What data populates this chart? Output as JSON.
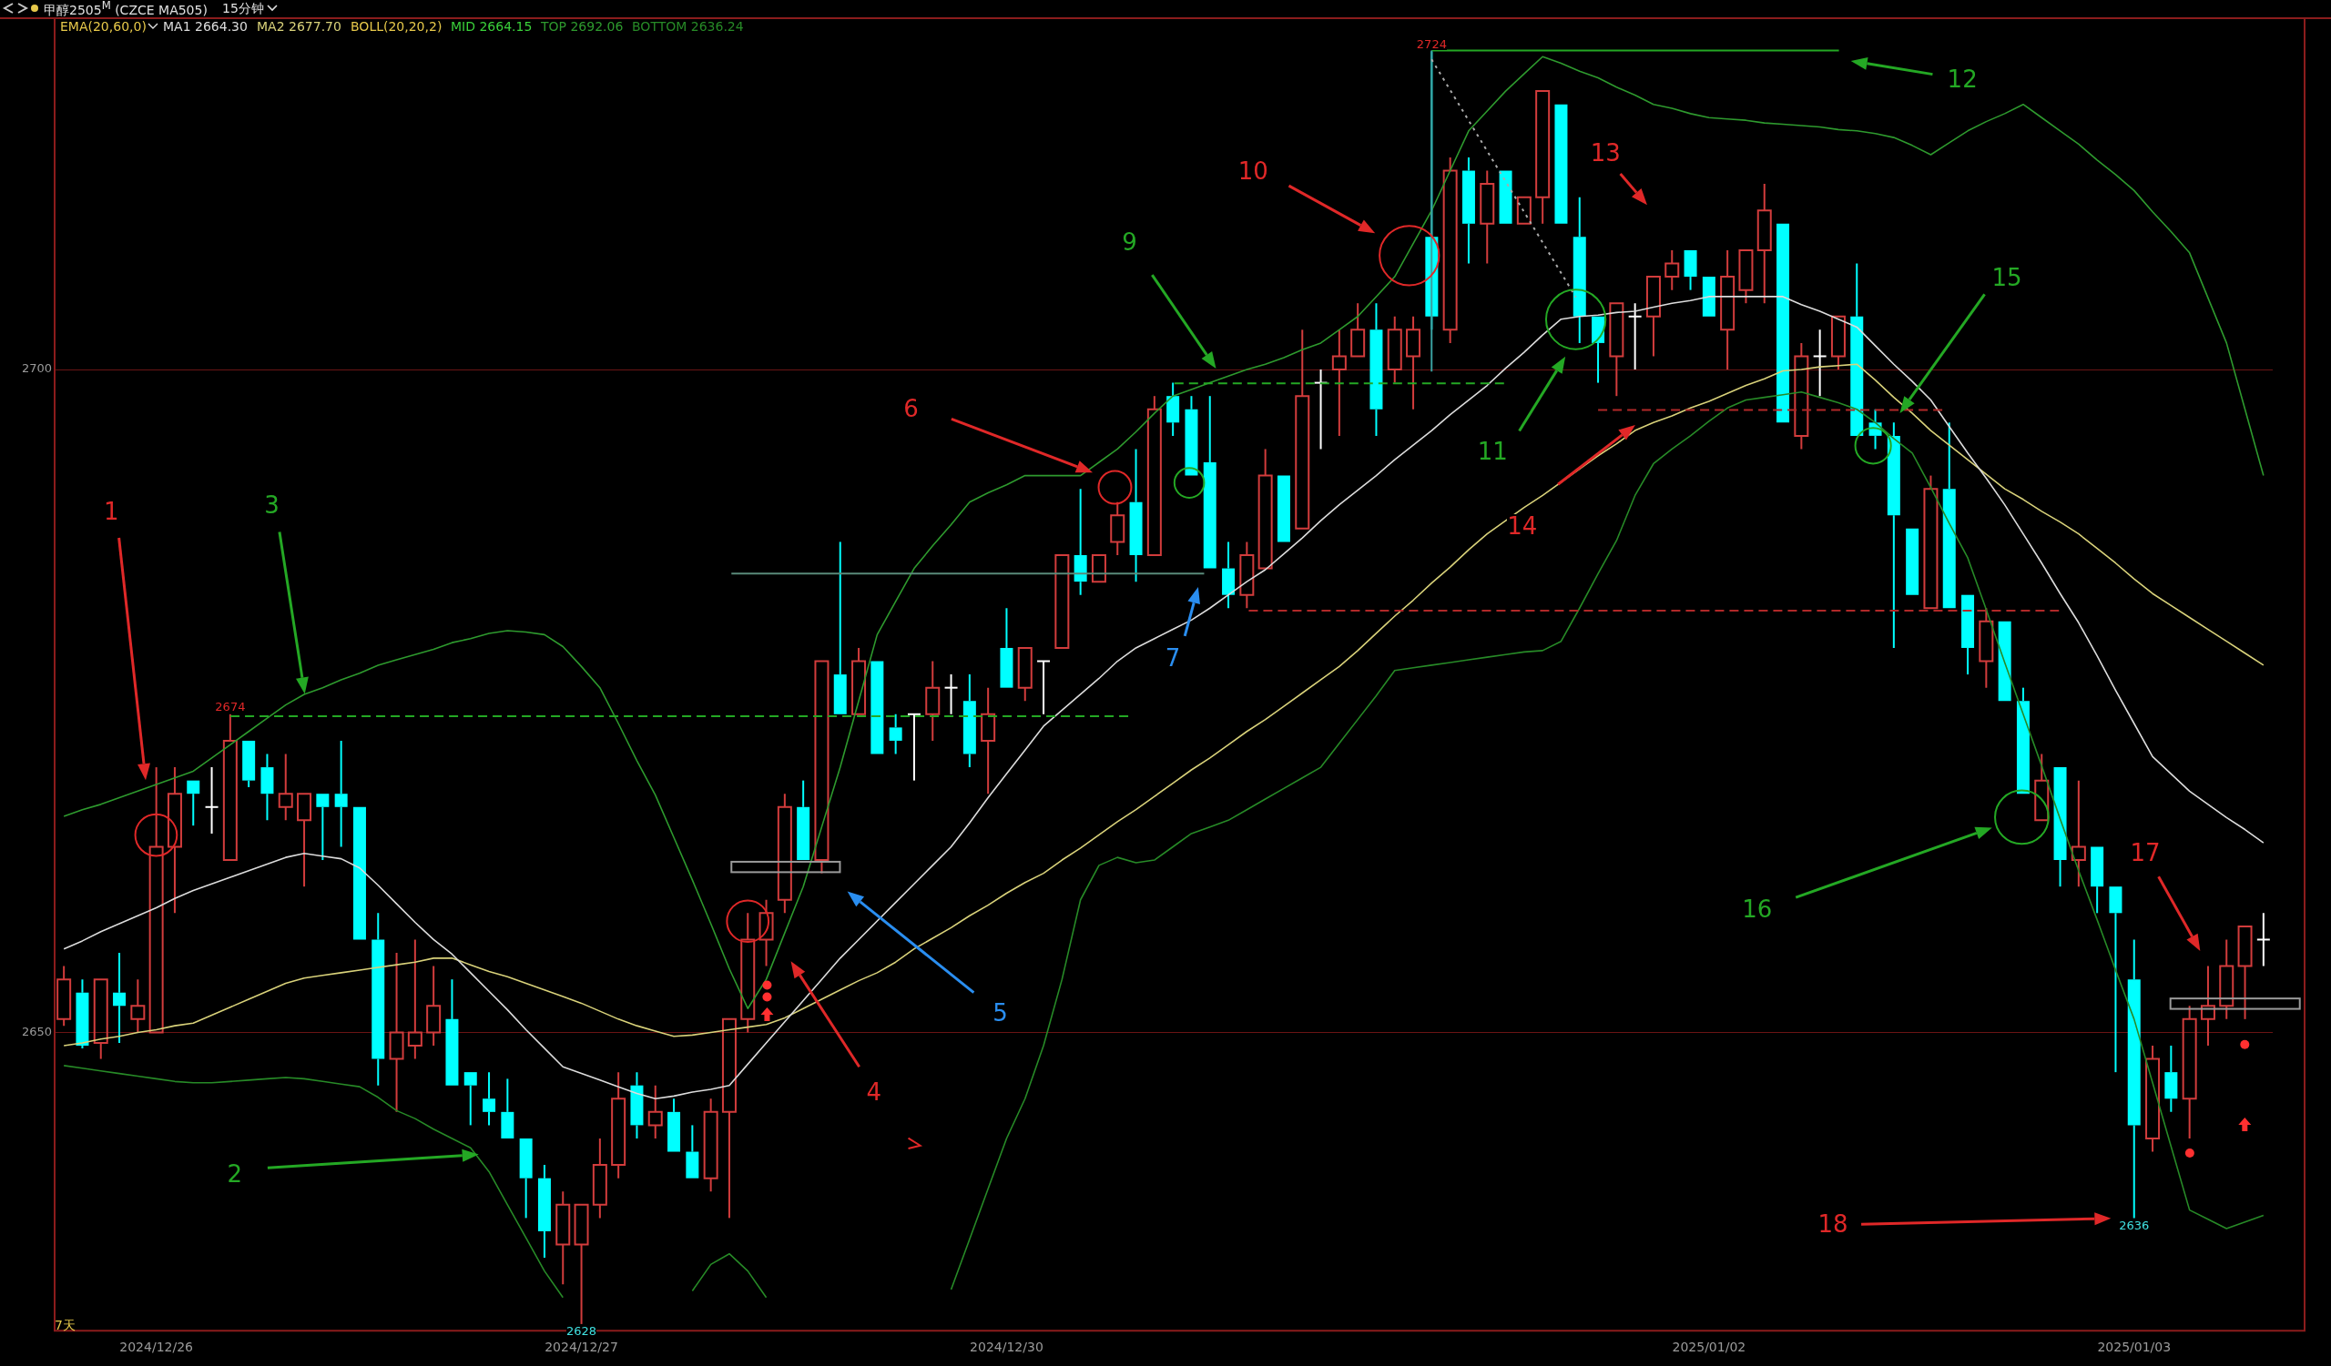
{
  "chart_data": {
    "type": "candlestick",
    "title": "甲醇2505$^{M}$ (CZCE MA505)",
    "subtitle": "15分钟",
    "categories": [
      null,
      null,
      null,
      null,
      null,
      "2024/12/26",
      null,
      null,
      null,
      null,
      null,
      null,
      null,
      null,
      null,
      null,
      null,
      null,
      null,
      null,
      null,
      null,
      null,
      null,
      null,
      null,
      null,
      null,
      "2024/12/27",
      null,
      null,
      null,
      null,
      null,
      null,
      null,
      null,
      null,
      null,
      null,
      null,
      null,
      null,
      null,
      null,
      null,
      null,
      null,
      null,
      null,
      null,
      "2024/12/30",
      null,
      null,
      null,
      null,
      null,
      null,
      null,
      null,
      null,
      null,
      null,
      null,
      null,
      null,
      null,
      null,
      null,
      null,
      null,
      null,
      null,
      null,
      null,
      null,
      null,
      null,
      null,
      null,
      null,
      null,
      null,
      null,
      null,
      null,
      null,
      null,
      null,
      "2025/01/02",
      null,
      null,
      null,
      null,
      null,
      null,
      null,
      null,
      null,
      null,
      null,
      null,
      null,
      null,
      null,
      null,
      null,
      null,
      null,
      null,
      null,
      null,
      "2025/01/03",
      null,
      null,
      null,
      null,
      null,
      null,
      null
    ],
    "ohlc": [
      [
        2651,
        2655,
        2650.5,
        2654
      ],
      [
        2653,
        2654,
        2648.8,
        2649
      ],
      [
        2649.2,
        2654,
        2648,
        2654
      ],
      [
        2653,
        2656,
        2649.2,
        2652
      ],
      [
        2651,
        2654,
        2650,
        2652
      ],
      [
        2650,
        2670,
        2650,
        2664
      ],
      [
        2664,
        2670,
        2659,
        2668
      ],
      [
        2669,
        2669,
        2665.6,
        2668
      ],
      [
        2667,
        2670,
        2665,
        2667
      ],
      [
        2663,
        2674,
        2663,
        2672
      ],
      [
        2672,
        2672,
        2668.5,
        2669
      ],
      [
        2670,
        2671,
        2666,
        2668
      ],
      [
        2667,
        2671,
        2666,
        2668
      ],
      [
        2666,
        2668,
        2661,
        2668
      ],
      [
        2668,
        2668,
        2663,
        2667
      ],
      [
        2668,
        2672,
        2664,
        2667
      ],
      [
        2667,
        2667,
        2657,
        2657
      ],
      [
        2657,
        2659,
        2646,
        2648
      ],
      [
        2648,
        2656,
        2644,
        2650
      ],
      [
        2649,
        2657,
        2648,
        2650
      ],
      [
        2650,
        2655,
        2649,
        2652
      ],
      [
        2651,
        2654,
        2646,
        2646
      ],
      [
        2647,
        2647,
        2643,
        2646
      ],
      [
        2645,
        2647,
        2643,
        2644
      ],
      [
        2644,
        2646.5,
        2642,
        2642
      ],
      [
        2642,
        2642,
        2636,
        2639
      ],
      [
        2639,
        2640,
        2633,
        2635
      ],
      [
        2634,
        2638,
        2631,
        2637
      ],
      [
        2634,
        2637,
        2628,
        2637
      ],
      [
        2637,
        2642,
        2636,
        2640
      ],
      [
        2640,
        2647,
        2639,
        2645
      ],
      [
        2646,
        2647,
        2642,
        2643
      ],
      [
        2643,
        2646,
        2642,
        2644
      ],
      [
        2644,
        2645,
        2641,
        2641
      ],
      [
        2641,
        2643,
        2639,
        2639
      ],
      [
        2639,
        2645,
        2638,
        2644
      ],
      [
        2644,
        2651,
        2636,
        2651
      ],
      [
        2651,
        2659,
        2650,
        2657
      ],
      [
        2657,
        2660,
        2655,
        2659
      ],
      [
        2660,
        2668,
        2659,
        2667
      ],
      [
        2667,
        2669,
        2663,
        2663
      ],
      [
        2663,
        2678,
        2662,
        2678
      ],
      [
        2677,
        2687,
        2674,
        2674
      ],
      [
        2674,
        2679,
        2674,
        2678
      ],
      [
        2678,
        2678,
        2671,
        2671
      ],
      [
        2673,
        2674,
        2671,
        2672
      ],
      [
        2674,
        2674,
        2669,
        2674
      ],
      [
        2674,
        2678,
        2672,
        2676
      ],
      [
        2676,
        2677,
        2674,
        2676
      ],
      [
        2675,
        2677,
        2670,
        2671
      ],
      [
        2672,
        2676,
        2668,
        2674
      ],
      [
        2679,
        2682,
        2676,
        2676
      ],
      [
        2676,
        2679,
        2675,
        2679
      ],
      [
        2678,
        2678,
        2674,
        2678
      ],
      [
        2679,
        2686,
        2679,
        2686
      ],
      [
        2686,
        2691,
        2683,
        2684
      ],
      [
        2684,
        2686,
        2684,
        2686
      ],
      [
        2687,
        2690,
        2686,
        2689
      ],
      [
        2690,
        2694,
        2684,
        2686
      ],
      [
        2686,
        2698,
        2686,
        2697
      ],
      [
        2698,
        2699,
        2695,
        2696
      ],
      [
        2697,
        2698,
        2692,
        2692
      ],
      [
        2693,
        2698,
        2685,
        2685
      ],
      [
        2685,
        2687,
        2682,
        2683
      ],
      [
        2683,
        2687,
        2682,
        2686
      ],
      [
        2685,
        2694,
        2685,
        2692
      ],
      [
        2692,
        2692,
        2687,
        2687
      ],
      [
        2688,
        2703,
        2688,
        2698
      ],
      [
        2699,
        2700,
        2694,
        2699
      ],
      [
        2700,
        2703,
        2695,
        2701
      ],
      [
        2701,
        2705,
        2701,
        2703
      ],
      [
        2703,
        2705,
        2695,
        2697
      ],
      [
        2700,
        2704,
        2699,
        2703
      ],
      [
        2701,
        2704,
        2697,
        2703
      ],
      [
        2710,
        2724,
        2703,
        2704
      ],
      [
        2703,
        2716,
        2702,
        2715
      ],
      [
        2715,
        2716,
        2708,
        2711
      ],
      [
        2711,
        2715,
        2708,
        2714
      ],
      [
        2715,
        2715,
        2711,
        2711
      ],
      [
        2711,
        2713,
        2711,
        2713
      ],
      [
        2713,
        2721,
        2711,
        2721
      ],
      [
        2720,
        2720,
        2711,
        2711
      ],
      [
        2710,
        2713,
        2702,
        2704
      ],
      [
        2704,
        2704,
        2699,
        2702
      ],
      [
        2701,
        2705,
        2698,
        2705
      ],
      [
        2704,
        2705,
        2700,
        2704
      ],
      [
        2704,
        2707,
        2701,
        2707
      ],
      [
        2707,
        2709,
        2706,
        2708
      ],
      [
        2709,
        2709,
        2706,
        2707
      ],
      [
        2707,
        2707,
        2704,
        2704
      ],
      [
        2703,
        2709,
        2700,
        2707
      ],
      [
        2706,
        2709,
        2705,
        2709
      ],
      [
        2709,
        2714,
        2705,
        2712
      ],
      [
        2711,
        2711,
        2696,
        2696
      ],
      [
        2695,
        2702,
        2694,
        2701
      ],
      [
        2701,
        2703,
        2698,
        2701
      ],
      [
        2701,
        2704,
        2700,
        2704
      ],
      [
        2704,
        2708,
        2695,
        2695
      ],
      [
        2696,
        2697,
        2694,
        2695
      ],
      [
        2695,
        2696,
        2679,
        2689
      ],
      [
        2688,
        2688,
        2683,
        2683
      ],
      [
        2682,
        2692,
        2682,
        2691
      ],
      [
        2691,
        2696,
        2682,
        2682
      ],
      [
        2683,
        2683,
        2677,
        2679
      ],
      [
        2678,
        2682,
        2676,
        2681
      ],
      [
        2681,
        2681,
        2675,
        2675
      ],
      [
        2675,
        2676,
        2668,
        2668
      ],
      [
        2666,
        2671,
        2666,
        2669
      ],
      [
        2670,
        2670,
        2661,
        2663
      ],
      [
        2663,
        2669,
        2661,
        2664
      ],
      [
        2664,
        2664,
        2659,
        2661
      ],
      [
        2661,
        2661,
        2647,
        2659
      ],
      [
        2654,
        2657,
        2636,
        2643
      ],
      [
        2642,
        2649,
        2641,
        2648
      ],
      [
        2647,
        2649,
        2644,
        2645
      ],
      [
        2645,
        2652,
        2642,
        2651
      ],
      [
        2651,
        2655,
        2649,
        2652
      ],
      [
        2652,
        2657,
        2651,
        2655
      ],
      [
        2655,
        2658,
        2651,
        2658
      ],
      [
        2657,
        2659,
        2655,
        2657
      ]
    ],
    "colors": [
      "#d23c3c",
      "#00ffff",
      "#d23c3c",
      "#00ffff",
      "#d23c3c",
      "#d23c3c",
      "#d23c3c",
      "#00ffff",
      "#ffffff",
      "#d23c3c",
      "#00ffff",
      "#00ffff",
      "#d23c3c",
      "#d23c3c",
      "#00ffff",
      "#00ffff",
      "#00ffff",
      "#00ffff",
      "#d23c3c",
      "#d23c3c",
      "#d23c3c",
      "#00ffff",
      "#00ffff",
      "#00ffff",
      "#00ffff",
      "#00ffff",
      "#00ffff",
      "#d23c3c",
      "#d23c3c",
      "#d23c3c",
      "#d23c3c",
      "#00ffff",
      "#d23c3c",
      "#00ffff",
      "#00ffff",
      "#d23c3c",
      "#d23c3c",
      "#d23c3c",
      "#d23c3c",
      "#d23c3c",
      "#00ffff",
      "#d23c3c",
      "#00ffff",
      "#d23c3c",
      "#00ffff",
      "#00ffff",
      "#ffffff",
      "#d23c3c",
      "#ffffff",
      "#00ffff",
      "#d23c3c",
      "#00ffff",
      "#d23c3c",
      "#ffffff",
      "#d23c3c",
      "#00ffff",
      "#d23c3c",
      "#d23c3c",
      "#00ffff",
      "#d23c3c",
      "#00ffff",
      "#00ffff",
      "#00ffff",
      "#00ffff",
      "#d23c3c",
      "#d23c3c",
      "#00ffff",
      "#d23c3c",
      "#ffffff",
      "#d23c3c",
      "#d23c3c",
      "#00ffff",
      "#d23c3c",
      "#d23c3c",
      "#00ffff",
      "#d23c3c",
      "#00ffff",
      "#d23c3c",
      "#00ffff",
      "#d23c3c",
      "#d23c3c",
      "#00ffff",
      "#00ffff",
      "#00ffff",
      "#d23c3c",
      "#ffffff",
      "#d23c3c",
      "#d23c3c",
      "#00ffff",
      "#00ffff",
      "#d23c3c",
      "#d23c3c",
      "#d23c3c",
      "#00ffff",
      "#d23c3c",
      "#ffffff",
      "#d23c3c",
      "#00ffff",
      "#00ffff",
      "#00ffff",
      "#00ffff",
      "#d23c3c",
      "#00ffff",
      "#00ffff",
      "#d23c3c",
      "#00ffff",
      "#00ffff",
      "#d23c3c",
      "#00ffff",
      "#d23c3c",
      "#00ffff",
      "#00ffff",
      "#00ffff",
      "#d23c3c",
      "#00ffff",
      "#d23c3c",
      "#d23c3c",
      "#d23c3c",
      "#d23c3c",
      "#ffffff"
    ],
    "series": [
      {
        "type": "line",
        "name": "MA1 2664.30",
        "color": "#dcdcdc",
        "values": [
          2656.3,
          2656.9,
          2657.6,
          2658.2,
          2658.8,
          2659.4,
          2660.1,
          2660.7,
          2661.2,
          2661.7,
          2662.2,
          2662.7,
          2663.2,
          2663.5,
          2663.3,
          2663.1,
          2662.4,
          2661.1,
          2659.7,
          2658.3,
          2657.0,
          2655.9,
          2654.5,
          2653.1,
          2651.7,
          2650.2,
          2648.8,
          2647.4,
          2646.9,
          2646.4,
          2645.9,
          2645.4,
          2645.0,
          2645.2,
          2645.5,
          2645.7,
          2646.0,
          2647.6,
          2649.2,
          2650.8,
          2652.4,
          2654.0,
          2655.6,
          2657.0,
          2658.4,
          2659.8,
          2661.2,
          2662.6,
          2664.0,
          2665.8,
          2667.7,
          2669.5,
          2671.3,
          2673.1,
          2674.3,
          2675.5,
          2676.7,
          2678.0,
          2679.0,
          2679.7,
          2680.4,
          2681.1,
          2682.0,
          2683.0,
          2684.0,
          2684.9,
          2686.1,
          2687.3,
          2688.6,
          2689.8,
          2690.9,
          2692.0,
          2693.2,
          2694.3,
          2695.4,
          2696.6,
          2697.7,
          2698.8,
          2700.1,
          2701.3,
          2702.6,
          2703.8,
          2704.0,
          2704.1,
          2704.3,
          2704.4,
          2704.7,
          2705.0,
          2705.2,
          2705.5,
          2705.5,
          2705.5,
          2705.5,
          2705.5,
          2704.9,
          2704.4,
          2703.8,
          2703.2,
          2701.8,
          2700.4,
          2699.1,
          2697.7,
          2695.7,
          2693.7,
          2691.8,
          2689.8,
          2687.6,
          2685.4,
          2683.1,
          2680.9,
          2678.4,
          2675.8,
          2673.3,
          2670.8,
          2669.5,
          2668.2,
          2667.2,
          2666.2,
          2665.3,
          2664.3
        ]
      },
      {
        "type": "line",
        "name": "MA2 2677.70",
        "color": "#d9d27a",
        "values": [
          2649.0,
          2649.2,
          2649.5,
          2649.7,
          2650.0,
          2650.2,
          2650.5,
          2650.7,
          2651.3,
          2651.9,
          2652.5,
          2653.1,
          2653.7,
          2654.1,
          2654.3,
          2654.5,
          2654.7,
          2654.9,
          2655.1,
          2655.3,
          2655.6,
          2655.6,
          2655.1,
          2654.6,
          2654.2,
          2653.7,
          2653.2,
          2652.7,
          2652.2,
          2651.6,
          2651.0,
          2650.5,
          2650.1,
          2649.7,
          2649.8,
          2650.0,
          2650.2,
          2650.4,
          2650.6,
          2651.1,
          2651.8,
          2652.5,
          2653.2,
          2653.9,
          2654.5,
          2655.3,
          2656.3,
          2657.1,
          2657.9,
          2658.8,
          2659.6,
          2660.5,
          2661.3,
          2662.0,
          2663.0,
          2663.9,
          2664.9,
          2665.9,
          2666.8,
          2667.8,
          2668.8,
          2669.8,
          2670.7,
          2671.7,
          2672.7,
          2673.6,
          2674.6,
          2675.6,
          2676.6,
          2677.6,
          2678.8,
          2680.1,
          2681.4,
          2682.6,
          2683.9,
          2685.1,
          2686.4,
          2687.6,
          2688.6,
          2689.6,
          2690.5,
          2691.5,
          2692.5,
          2693.5,
          2694.4,
          2695.4,
          2696.0,
          2696.5,
          2697.1,
          2697.6,
          2698.2,
          2698.8,
          2699.3,
          2699.9,
          2700.0,
          2700.2,
          2700.3,
          2700.4,
          2699.2,
          2697.9,
          2696.7,
          2695.4,
          2694.3,
          2693.2,
          2692.1,
          2691.0,
          2690.2,
          2689.3,
          2688.5,
          2687.6,
          2686.5,
          2685.4,
          2684.2,
          2683.1,
          2682.2,
          2681.3,
          2680.4,
          2679.5,
          2678.6,
          2677.7
        ]
      },
      {
        "type": "line",
        "name": "TOP 2692.06",
        "color": "#2e9a2e",
        "values": [
          2666.3,
          2666.8,
          2667.2,
          2667.7,
          2668.2,
          2668.7,
          2669.2,
          2669.7,
          2670.7,
          2671.7,
          2672.7,
          2673.7,
          2674.7,
          2675.5,
          2676.0,
          2676.6,
          2677.1,
          2677.7,
          2678.1,
          2678.5,
          2678.9,
          2679.4,
          2679.7,
          2680.1,
          2680.3,
          2680.2,
          2680.0,
          2679.1,
          2677.6,
          2676.0,
          2673.3,
          2670.5,
          2667.9,
          2664.7,
          2661.5,
          2658.2,
          2654.8,
          2651.8,
          2654.0,
          2657.5,
          2661.0,
          2665.5,
          2670.0,
          2675.0,
          2680.0,
          2682.5,
          2685.0,
          2686.7,
          2688.3,
          2690.0,
          2690.7,
          2691.3,
          2692.0,
          2692.0,
          2692.0,
          2692.0,
          2693.0,
          2694.0,
          2695.3,
          2696.7,
          2698.0,
          2698.5,
          2699.0,
          2699.5,
          2700.0,
          2700.4,
          2700.9,
          2701.5,
          2702.0,
          2703.0,
          2704.0,
          2705.5,
          2707.0,
          2709.5,
          2712.0,
          2715.0,
          2718.0,
          2719.5,
          2721.0,
          2722.3,
          2723.6,
          2723.1,
          2722.5,
          2722.0,
          2721.3,
          2720.7,
          2720.0,
          2719.7,
          2719.3,
          2719.0,
          2718.9,
          2718.8,
          2718.6,
          2718.5,
          2718.4,
          2718.3,
          2718.1,
          2718.0,
          2717.8,
          2717.5,
          2716.9,
          2716.2,
          2717.1,
          2718.0,
          2718.7,
          2719.3,
          2720.0,
          2719.0,
          2718.0,
          2717.0,
          2715.8,
          2714.7,
          2713.5,
          2711.9,
          2710.4,
          2708.8,
          2705.4,
          2702.0,
          2697.0,
          2692.0
        ]
      },
      {
        "type": "line",
        "name": "BOTTOM 2636.24",
        "color": "#278a27",
        "values": [
          2647.5,
          2647.3,
          2647.1,
          2646.9,
          2646.7,
          2646.5,
          2646.3,
          2646.2,
          2646.2,
          2646.3,
          2646.4,
          2646.5,
          2646.6,
          2646.5,
          2646.3,
          2646.1,
          2645.9,
          2645.1,
          2644.1,
          2643.5,
          2642.7,
          2642.0,
          2641.3,
          2639.5,
          2637.0,
          2634.5,
          2632.0,
          2630.0,
          null,
          null,
          null,
          null,
          null,
          null,
          2630.5,
          2632.5,
          2633.3,
          2632.0,
          2630.0,
          null,
          null,
          null,
          null,
          null,
          null,
          null,
          null,
          null,
          2630.6,
          2634.4,
          2638.2,
          2642.0,
          2645.0,
          2649.0,
          2654.0,
          2660.0,
          2662.6,
          2663.2,
          2662.8,
          2663.0,
          2664.0,
          2665.0,
          2665.5,
          2666.0,
          2666.8,
          2667.6,
          2668.4,
          2669.2,
          2670.0,
          2671.8,
          2673.6,
          2675.4,
          2677.3,
          2677.5,
          2677.7,
          2677.9,
          2678.1,
          2678.3,
          2678.5,
          2678.7,
          2678.8,
          2679.5,
          2682.0,
          2684.6,
          2687.1,
          2690.5,
          2692.9,
          2694.0,
          2695.0,
          2696.1,
          2697.1,
          2697.7,
          2697.9,
          2698.1,
          2698.3,
          2697.9,
          2697.5,
          2697.0,
          2696.0,
          2694.8,
          2693.7,
          2691.1,
          2688.4,
          2685.8,
          2681.9,
          2677.9,
          2674.0,
          2670.1,
          2666.1,
          2662.2,
          2658.5,
          2654.7,
          2651.0,
          2646.2,
          2641.4,
          2636.6,
          2635.9,
          2635.2,
          2635.7,
          2636.2
        ]
      }
    ],
    "ylim": [
      2627.5,
      2726.5
    ],
    "yticks": [
      2650,
      2700
    ],
    "grid": "y",
    "legend": "top left",
    "annotations": [
      "EMA(20,60,0)",
      "BOLL(20,20,2)",
      "MID 2664.15",
      "7天",
      {
        "text": "2674",
        "y": 2674
      },
      {
        "text": "2628",
        "y": 2628
      },
      {
        "text": "2724",
        "y": 2724
      },
      {
        "text": "2636",
        "y": 2636
      },
      "1",
      "2",
      "3",
      "4",
      "5",
      "6",
      "7",
      "9",
      "10",
      "11",
      "12",
      "13",
      "14",
      "15",
      "16",
      "17",
      "18"
    ]
  }
}
